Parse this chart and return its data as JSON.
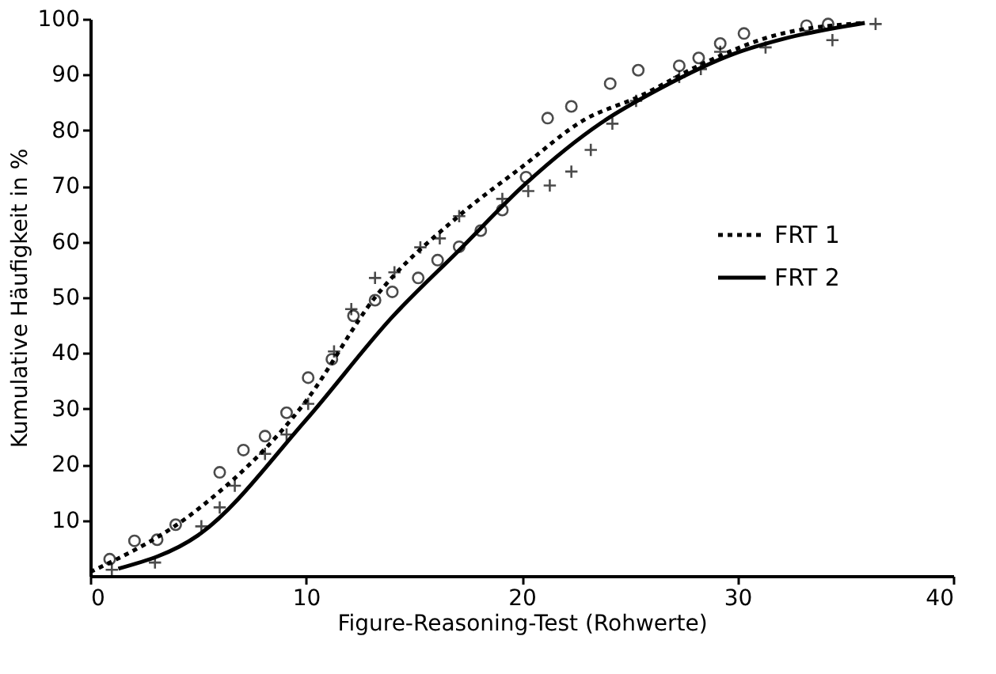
{
  "chart_data": {
    "type": "line",
    "xlabel": "Figure-Reasoning-Test (Rohwerte)",
    "ylabel": "Kumulative Häufigkeit in %",
    "xlim": [
      0,
      40
    ],
    "ylim": [
      0,
      100
    ],
    "xticks": [
      0,
      10,
      20,
      30,
      40
    ],
    "yticks": [
      10,
      20,
      30,
      40,
      50,
      60,
      70,
      80,
      90,
      100
    ],
    "grid": false,
    "legend": "right",
    "series": [
      {
        "name": "FRT 1",
        "line_style": "dotted",
        "color": "#000000",
        "x": [
          0,
          5,
          10,
          13.2,
          17.1,
          20,
          22.9,
          25.4,
          28.3,
          31.5,
          35.9
        ],
        "values": [
          0.7,
          12,
          31.4,
          50,
          64.7,
          73.4,
          81.9,
          86,
          91.8,
          96.8,
          99.3
        ]
      },
      {
        "name": "FRT 2",
        "line_style": "solid",
        "color": "#000000",
        "x": [
          1.3,
          5,
          10,
          14,
          17.1,
          20.2,
          23.7,
          26.4,
          29.8,
          32.2,
          35.9
        ],
        "values": [
          1.3,
          7.3,
          28,
          46.5,
          58.5,
          70.5,
          81.4,
          87.5,
          93.7,
          96.5,
          99.3
        ]
      },
      {
        "type": "scatter",
        "marker": "circle",
        "color": "#000000",
        "x": [
          0.9,
          2.05,
          3.1,
          3.96,
          6.0,
          7.1,
          8.1,
          9.1,
          10.1,
          11.2,
          12.2,
          13.2,
          14.0,
          15.2,
          16.1,
          17.1,
          18.1,
          19.1,
          20.2,
          21.2,
          22.3,
          24.1,
          25.4,
          27.3,
          28.2,
          29.2,
          30.3,
          33.2,
          34.2
        ],
        "values": [
          3.0,
          6.3,
          6.5,
          9.2,
          18.6,
          22.6,
          25.1,
          29.3,
          35.6,
          38.9,
          46.7,
          49.5,
          51,
          53.5,
          56.7,
          59.1,
          62,
          65.7,
          71.6,
          82.2,
          84.3,
          88.4,
          90.8,
          91.6,
          93,
          95.6,
          97.4,
          98.8,
          99.1
        ]
      },
      {
        "type": "scatter",
        "marker": "cross",
        "color": "#000000",
        "x": [
          1.0,
          3.0,
          5.15,
          6.0,
          6.7,
          8.1,
          9.1,
          10.1,
          11.3,
          12.1,
          13.2,
          14.1,
          15.3,
          16.2,
          17.1,
          19.1,
          20.3,
          21.3,
          22.3,
          23.2,
          24.2,
          25.3,
          27.3,
          28.3,
          29.2,
          31.3,
          34.4,
          36.4
        ],
        "values": [
          1.1,
          2.4,
          8.9,
          12.3,
          16.2,
          21.9,
          25.4,
          30.9,
          40.3,
          47.9,
          53.5,
          54.5,
          59,
          60.6,
          64.6,
          67.7,
          69.1,
          70.1,
          72.6,
          76.5,
          81.2,
          85.3,
          89.6,
          91,
          94.1,
          94.9,
          96.2,
          99.1
        ]
      }
    ]
  }
}
